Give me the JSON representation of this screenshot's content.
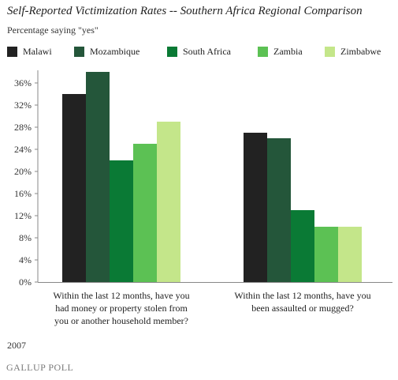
{
  "title": "Self-Reported Victimization Rates  -- Southern Africa Regional Comparison",
  "subtitle": "Percentage saying \"yes\"",
  "year": "2007",
  "footer": "GALLUP POLL",
  "chart_data": {
    "type": "bar",
    "title": "Self-Reported Victimization Rates  -- Southern Africa Regional Comparison",
    "ylabel": "",
    "xlabel": "",
    "ylim": [
      0,
      38
    ],
    "yticks": [
      "0%",
      "4%",
      "8%",
      "12%",
      "16%",
      "20%",
      "24%",
      "28%",
      "32%",
      "36%"
    ],
    "categories": [
      [
        "Within the last 12 months, have you",
        "had money or property stolen from",
        "you or another household member?"
      ],
      [
        "Within the last 12 months, have you",
        "been assaulted or mugged?"
      ]
    ],
    "series": [
      {
        "name": "Malawi",
        "color": "#222222",
        "values": [
          34,
          27
        ]
      },
      {
        "name": "Mozambique",
        "color": "#24563a",
        "values": [
          38,
          26
        ]
      },
      {
        "name": "South Africa",
        "color": "#0a7a35",
        "values": [
          22,
          13
        ]
      },
      {
        "name": "Zambia",
        "color": "#5cc154",
        "values": [
          25,
          10
        ]
      },
      {
        "name": "Zimbabwe",
        "color": "#c4e68a",
        "values": [
          29,
          10
        ]
      }
    ],
    "legend_position": "top",
    "grid": false
  }
}
